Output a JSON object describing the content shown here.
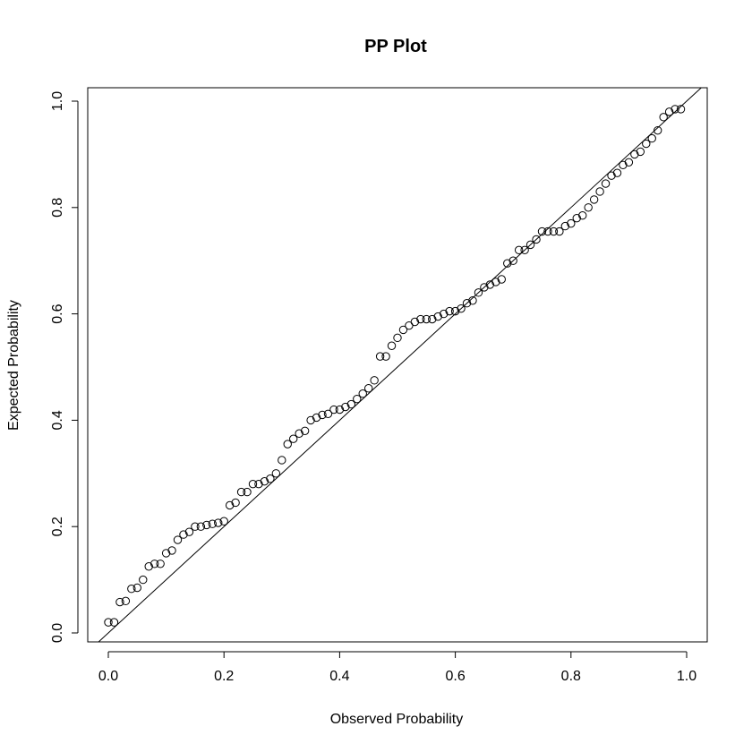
{
  "chart_data": {
    "type": "scatter",
    "title": "PP Plot",
    "xlabel": "Observed Probability",
    "ylabel": "Expected Probability",
    "xlim": [
      0.0,
      1.0
    ],
    "ylim": [
      0.0,
      1.0
    ],
    "x_ticks": [
      "0.0",
      "0.2",
      "0.4",
      "0.6",
      "0.8",
      "1.0"
    ],
    "y_ticks": [
      "0.0",
      "0.2",
      "0.4",
      "0.6",
      "0.8",
      "1.0"
    ],
    "grid": false,
    "reference_line": {
      "type": "identity",
      "slope": 1,
      "intercept": 0
    },
    "series": [
      {
        "x": [
          0.0,
          0.01,
          0.02,
          0.03,
          0.04,
          0.05,
          0.06,
          0.07,
          0.08,
          0.09,
          0.1,
          0.11,
          0.12,
          0.13,
          0.14,
          0.15,
          0.16,
          0.17,
          0.18,
          0.19,
          0.2,
          0.21,
          0.22,
          0.23,
          0.24,
          0.25,
          0.26,
          0.27,
          0.28,
          0.29,
          0.3,
          0.31,
          0.32,
          0.33,
          0.34,
          0.35,
          0.36,
          0.37,
          0.38,
          0.39,
          0.4,
          0.41,
          0.42,
          0.43,
          0.44,
          0.45,
          0.46,
          0.47,
          0.48,
          0.49,
          0.5,
          0.51,
          0.52,
          0.53,
          0.54,
          0.55,
          0.56,
          0.57,
          0.58,
          0.59,
          0.6,
          0.61,
          0.62,
          0.63,
          0.64,
          0.65,
          0.66,
          0.67,
          0.68,
          0.69,
          0.7,
          0.71,
          0.72,
          0.73,
          0.74,
          0.75,
          0.76,
          0.77,
          0.78,
          0.79,
          0.8,
          0.81,
          0.82,
          0.83,
          0.84,
          0.85,
          0.86,
          0.87,
          0.88,
          0.89,
          0.9,
          0.91,
          0.92,
          0.93,
          0.94,
          0.95,
          0.96,
          0.97,
          0.98,
          0.99
        ],
        "y": [
          0.02,
          0.02,
          0.058,
          0.06,
          0.083,
          0.085,
          0.1,
          0.125,
          0.13,
          0.13,
          0.15,
          0.155,
          0.175,
          0.185,
          0.19,
          0.2,
          0.2,
          0.203,
          0.205,
          0.207,
          0.21,
          0.24,
          0.245,
          0.265,
          0.265,
          0.28,
          0.28,
          0.285,
          0.29,
          0.3,
          0.325,
          0.355,
          0.365,
          0.375,
          0.38,
          0.4,
          0.405,
          0.41,
          0.412,
          0.42,
          0.42,
          0.425,
          0.43,
          0.44,
          0.45,
          0.46,
          0.475,
          0.52,
          0.52,
          0.54,
          0.555,
          0.57,
          0.578,
          0.585,
          0.59,
          0.59,
          0.59,
          0.595,
          0.6,
          0.605,
          0.605,
          0.61,
          0.62,
          0.625,
          0.64,
          0.65,
          0.655,
          0.66,
          0.665,
          0.695,
          0.7,
          0.72,
          0.72,
          0.73,
          0.74,
          0.755,
          0.755,
          0.755,
          0.755,
          0.765,
          0.77,
          0.78,
          0.785,
          0.8,
          0.815,
          0.83,
          0.845,
          0.86,
          0.865,
          0.88,
          0.885,
          0.9,
          0.905,
          0.92,
          0.93,
          0.945,
          0.97,
          0.98,
          0.985,
          0.985
        ]
      }
    ]
  }
}
